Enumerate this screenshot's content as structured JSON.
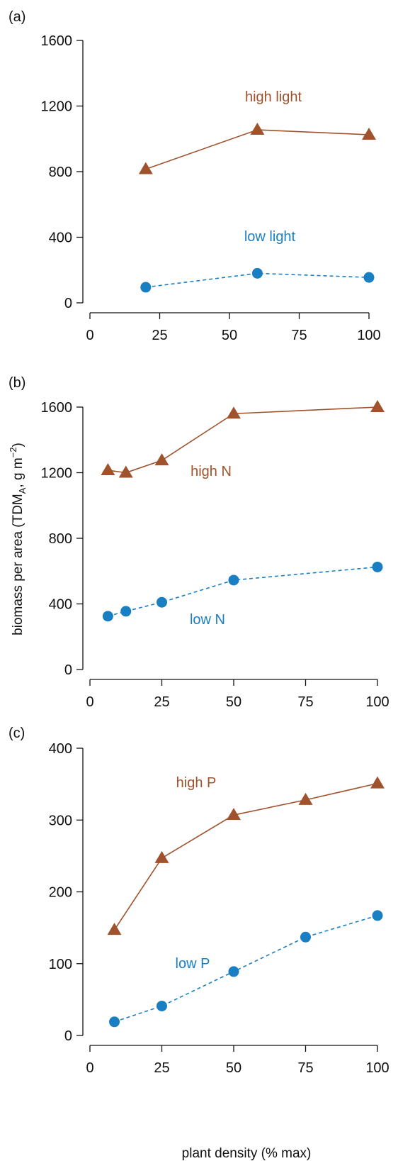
{
  "colors": {
    "high": "#a0522d",
    "low": "#1a7fc2",
    "axis": "#111111"
  },
  "ylabel_main": "biomass per area (TDM",
  "ylabel_sub": "A",
  "ylabel_tail": ", g m",
  "ylabel_sup": "−2",
  "ylabel_close": ")",
  "xlabel": "plant density (% max)",
  "chart_data": [
    {
      "type": "line",
      "panel_label": "(a)",
      "xlim": [
        0,
        100
      ],
      "ylim": [
        0,
        1600
      ],
      "xticks": [
        "0",
        "25",
        "50",
        "75",
        "100"
      ],
      "yticks": [
        "0",
        "400",
        "800",
        "1200",
        "1600"
      ],
      "series": [
        {
          "name": "high light",
          "marker": "triangle",
          "line": "solid",
          "x": [
            20,
            60,
            100
          ],
          "y": [
            815,
            1055,
            1025
          ]
        },
        {
          "name": "low light",
          "marker": "circle",
          "line": "dashed",
          "x": [
            20,
            60,
            100
          ],
          "y": [
            95,
            180,
            155
          ]
        }
      ]
    },
    {
      "type": "line",
      "panel_label": "(b)",
      "xlim": [
        0,
        100
      ],
      "ylim": [
        0,
        1600
      ],
      "xticks": [
        "0",
        "25",
        "50",
        "75",
        "100"
      ],
      "yticks": [
        "0",
        "400",
        "800",
        "1200",
        "1600"
      ],
      "series": [
        {
          "name": "high N",
          "marker": "triangle",
          "line": "solid",
          "x": [
            6.25,
            12.5,
            25,
            50,
            100
          ],
          "y": [
            1215,
            1200,
            1275,
            1560,
            1600
          ]
        },
        {
          "name": "low N",
          "marker": "circle",
          "line": "dashed",
          "x": [
            6.25,
            12.5,
            25,
            50,
            100
          ],
          "y": [
            325,
            355,
            410,
            545,
            625
          ]
        }
      ]
    },
    {
      "type": "line",
      "panel_label": "(c)",
      "xlim": [
        0,
        100
      ],
      "ylim": [
        0,
        400
      ],
      "xticks": [
        "0",
        "25",
        "50",
        "75",
        "100"
      ],
      "yticks": [
        "0",
        "100",
        "200",
        "300",
        "400"
      ],
      "series": [
        {
          "name": "high P",
          "marker": "triangle",
          "line": "solid",
          "x": [
            8.5,
            25,
            50,
            75,
            100
          ],
          "y": [
            147,
            247,
            307,
            328,
            351
          ]
        },
        {
          "name": "low P",
          "marker": "circle",
          "line": "dashed",
          "x": [
            8.5,
            25,
            50,
            75,
            100
          ],
          "y": [
            19,
            41,
            89,
            137,
            167
          ]
        }
      ]
    }
  ]
}
